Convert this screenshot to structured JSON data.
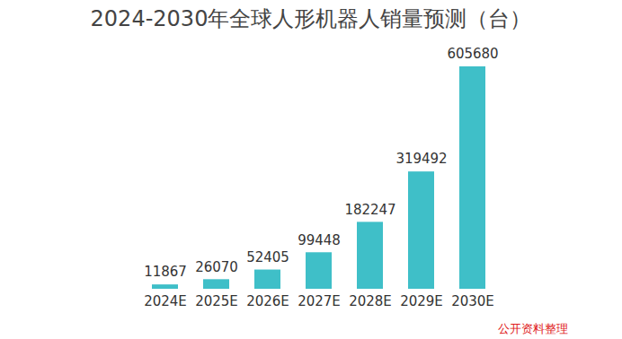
{
  "chart_data": {
    "type": "bar",
    "title": "2024-2030年全球人形机器人销量预测（台）",
    "categories": [
      "2024E",
      "2025E",
      "2026E",
      "2027E",
      "2028E",
      "2029E",
      "2030E"
    ],
    "values": [
      11867,
      26070,
      52405,
      99448,
      182247,
      319492,
      605680
    ],
    "color": "#3fbfc8",
    "data_labels": true,
    "tick_labels": "x",
    "grid": false,
    "source": "公开资料整理"
  }
}
